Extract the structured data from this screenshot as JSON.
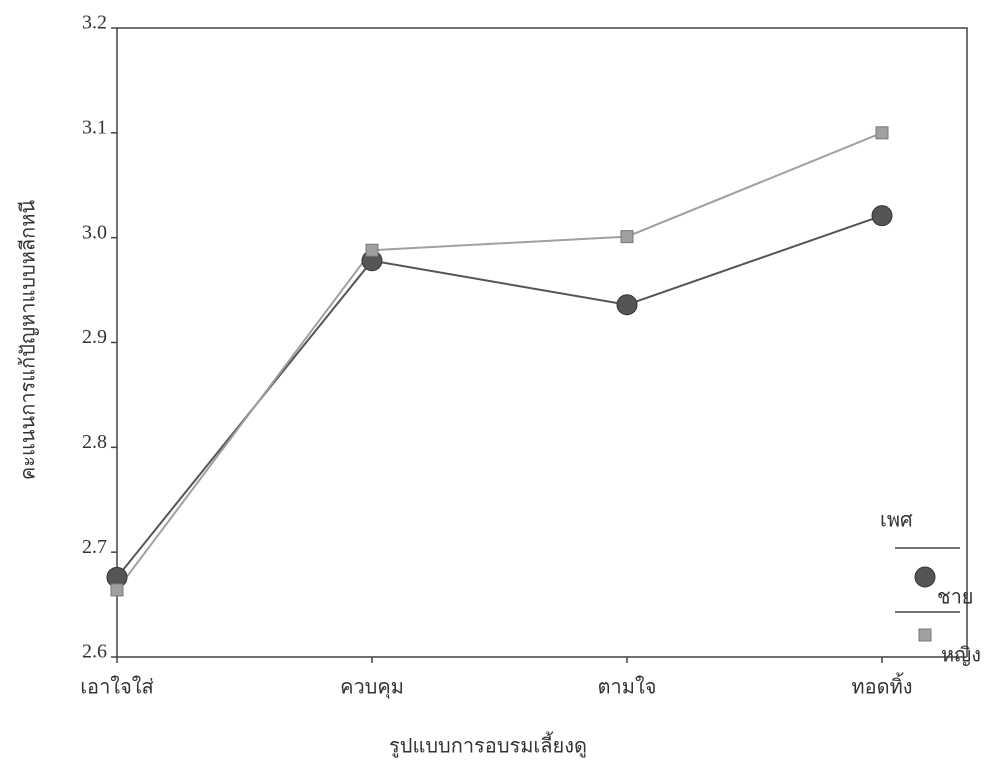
{
  "chart_data": {
    "type": "line",
    "x_label": "รูปแบบการอบรมเลี้ยงดู",
    "y_label": "คะแนนการแก้ปัญหาแบบหลีกหนี",
    "legend_title": "เพศ",
    "categories": [
      "เอาใจใส่",
      "ควบคุม",
      "ตามใจ",
      "ทอดทิ้ง"
    ],
    "series": [
      {
        "name": "ชาย",
        "color": "#555555",
        "marker": "circle",
        "values": [
          2.676,
          2.978,
          2.936,
          3.021
        ]
      },
      {
        "name": "หญิง",
        "color": "#a0a0a0",
        "marker": "square",
        "values": [
          2.664,
          2.988,
          3.001,
          3.1
        ]
      }
    ],
    "ylim": [
      2.6,
      3.2
    ],
    "yticks": [
      2.6,
      2.7,
      2.8,
      2.9,
      {
        "value": 3,
        "label": "3.0"
      },
      3.1,
      3.2
    ],
    "legend": "right"
  }
}
